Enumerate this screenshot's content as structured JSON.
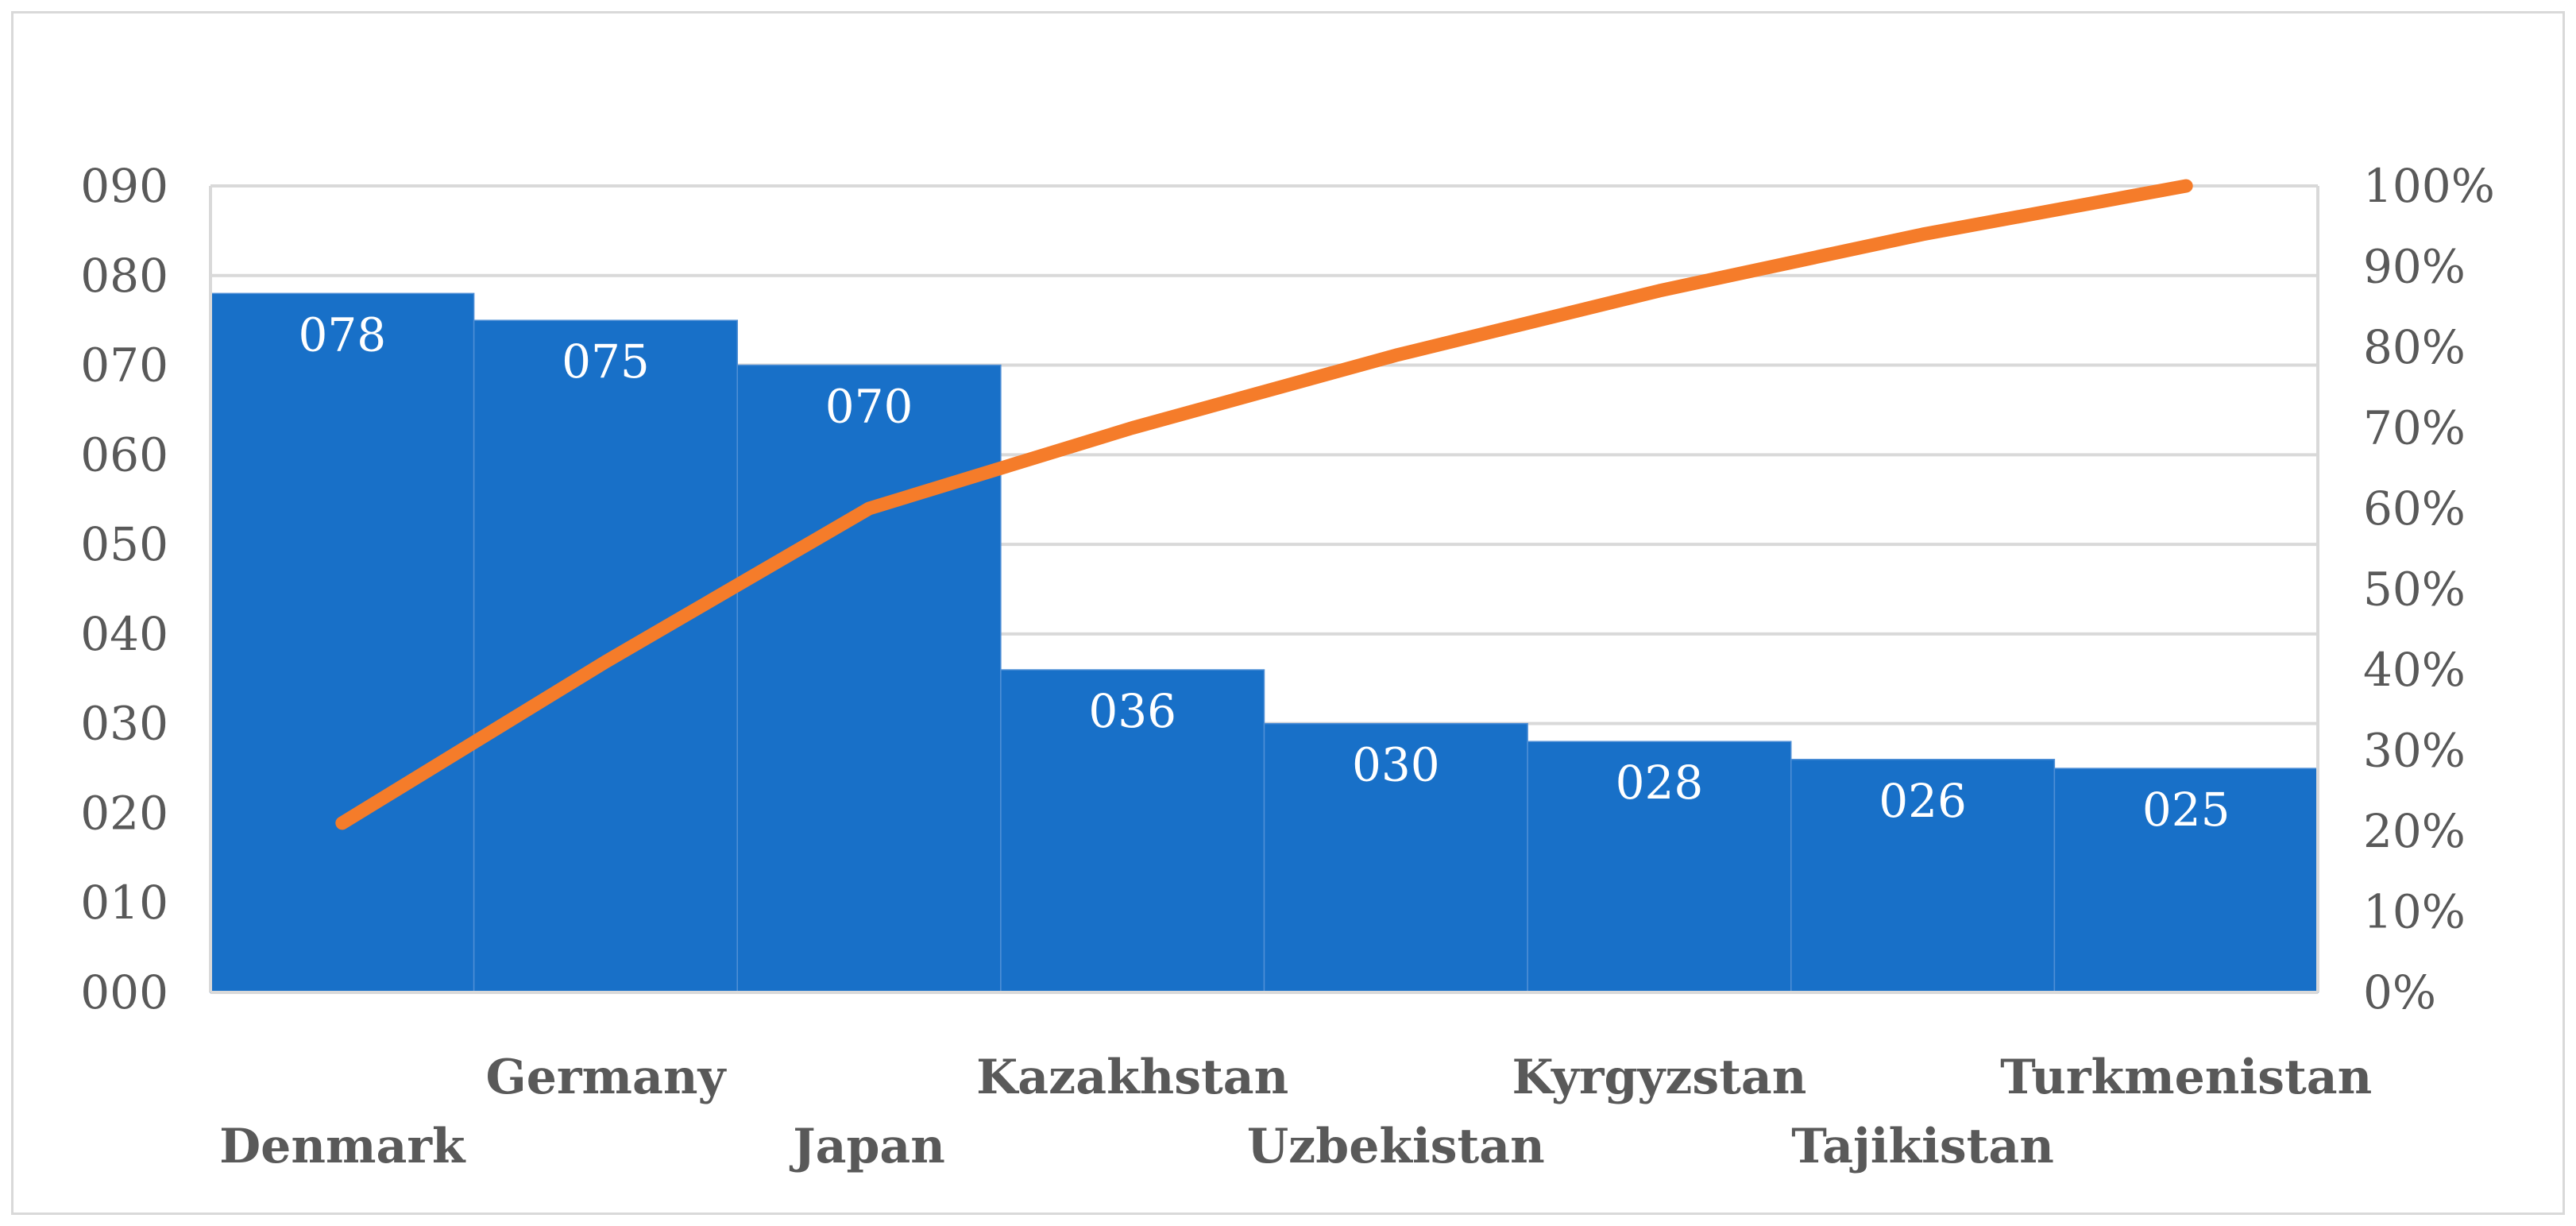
{
  "chart_data": {
    "type": "bar",
    "categories": [
      "Denmark",
      "Germany",
      "Japan",
      "Kazakhstan",
      "Uzbekistan",
      "Kyrgyzstan",
      "Tajikistan",
      "Turkmenistan"
    ],
    "series": [
      {
        "type": "bar",
        "values": [
          78,
          75,
          70,
          36,
          30,
          28,
          26,
          25
        ],
        "data_labels": [
          "078",
          "075",
          "070",
          "036",
          "030",
          "028",
          "026",
          "025"
        ],
        "color": "#1870c8"
      },
      {
        "type": "line",
        "axis": "right",
        "values": [
          0.21,
          0.41,
          0.6,
          0.7,
          0.79,
          0.87,
          0.94,
          1.0
        ],
        "color": "#f57c2a"
      }
    ],
    "y_left": {
      "min": 0,
      "max": 90,
      "ticks": [
        "000",
        "010",
        "020",
        "030",
        "040",
        "050",
        "060",
        "070",
        "080",
        "090"
      ]
    },
    "y_right": {
      "min": 0,
      "max": 1.0,
      "ticks": [
        "0%",
        "10%",
        "20%",
        "30%",
        "40%",
        "50%",
        "60%",
        "70%",
        "80%",
        "90%",
        "100%"
      ]
    },
    "grid": true,
    "legend": "none"
  }
}
